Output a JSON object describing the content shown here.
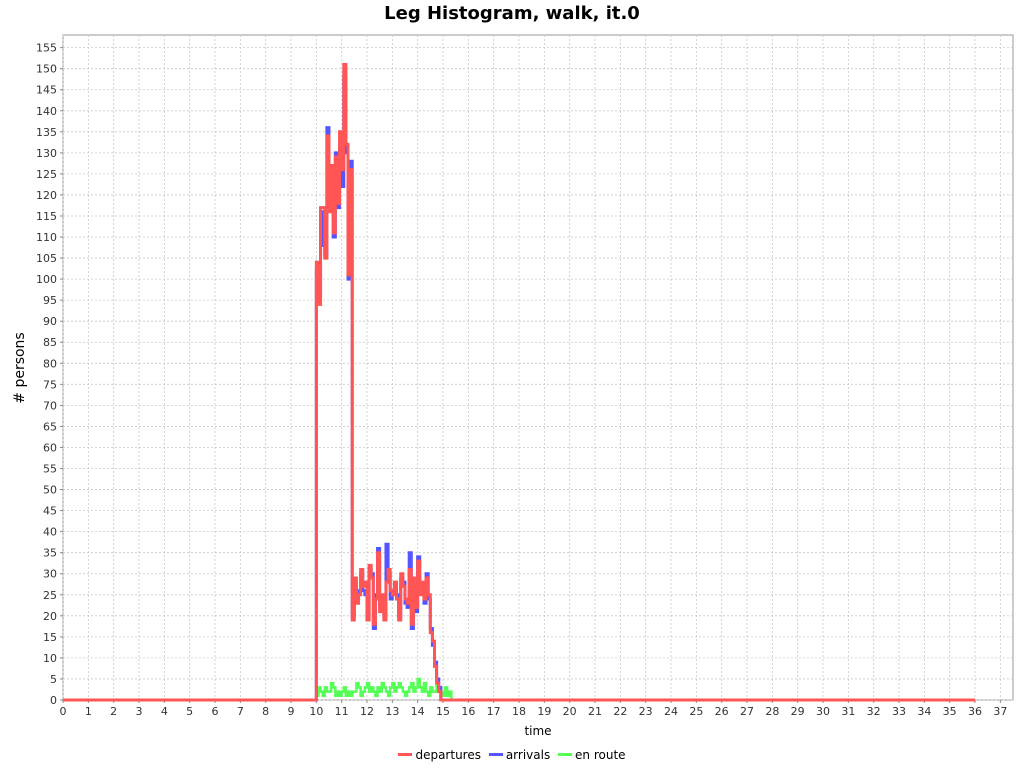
{
  "chart_data": {
    "type": "line",
    "title": "Leg Histogram, walk, it.0",
    "xlabel": "time",
    "ylabel": "# persons",
    "xlim": [
      0,
      37.5
    ],
    "ylim": [
      0,
      158
    ],
    "xticks": [
      0,
      1,
      2,
      3,
      4,
      5,
      6,
      7,
      8,
      9,
      10,
      11,
      12,
      13,
      14,
      15,
      16,
      17,
      18,
      19,
      20,
      21,
      22,
      23,
      24,
      25,
      26,
      27,
      28,
      29,
      30,
      31,
      32,
      33,
      34,
      35,
      36,
      37
    ],
    "yticks": [
      0,
      5,
      10,
      15,
      20,
      25,
      30,
      35,
      40,
      45,
      50,
      55,
      60,
      65,
      70,
      75,
      80,
      85,
      90,
      95,
      100,
      105,
      110,
      115,
      120,
      125,
      130,
      135,
      140,
      145,
      150,
      155
    ],
    "grid": true,
    "legend_position": "bottom",
    "step_hours": 0.0833,
    "series": [
      {
        "name": "departures",
        "color": "#ff5555",
        "x_start": 10.0,
        "values": [
          104,
          94,
          117,
          117,
          105,
          134,
          116,
          127,
          111,
          129,
          118,
          135,
          126,
          151,
          132,
          101,
          126,
          19,
          29,
          23,
          25,
          31,
          27,
          28,
          19,
          32,
          29,
          18,
          24,
          35,
          21,
          25,
          19,
          28,
          31,
          26,
          25,
          28,
          24,
          19,
          30,
          27,
          24,
          23,
          31,
          18,
          29,
          22,
          33,
          25,
          28,
          24,
          29,
          25,
          16,
          14,
          8,
          4,
          2
        ]
      },
      {
        "name": "arrivals",
        "color": "#5555ff",
        "x_start": 10.0,
        "values": [
          102,
          96,
          116,
          108,
          106,
          136,
          119,
          124,
          110,
          130,
          117,
          132,
          122,
          148,
          130,
          100,
          128,
          20,
          28,
          24,
          26,
          30,
          26,
          25,
          20,
          31,
          30,
          17,
          25,
          36,
          22,
          24,
          20,
          37,
          30,
          24,
          26,
          27,
          25,
          20,
          29,
          28,
          23,
          22,
          35,
          17,
          28,
          21,
          34,
          26,
          27,
          23,
          30,
          24,
          17,
          13,
          9,
          5,
          3
        ]
      },
      {
        "name": "en route",
        "color": "#55ff55",
        "x_start": 10.0,
        "values": [
          1,
          3,
          2,
          1,
          3,
          2,
          2,
          4,
          3,
          1,
          2,
          1,
          2,
          3,
          1,
          2,
          1,
          2,
          2,
          4,
          3,
          1,
          2,
          3,
          4,
          2,
          3,
          2,
          1,
          3,
          2,
          4,
          3,
          2,
          1,
          3,
          4,
          2,
          3,
          4,
          3,
          2,
          1,
          2,
          3,
          4,
          2,
          3,
          5,
          3,
          2,
          4,
          2,
          1,
          3,
          2,
          2,
          5,
          2,
          2,
          1,
          3,
          1,
          2
        ]
      }
    ]
  }
}
